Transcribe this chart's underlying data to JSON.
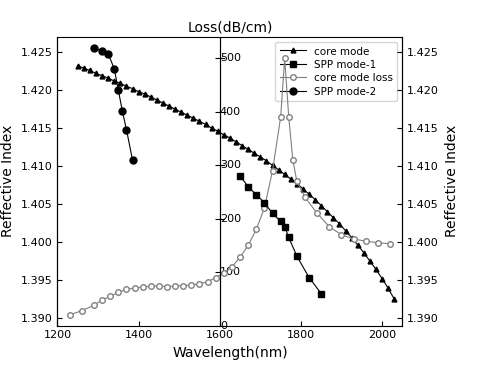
{
  "title_top": "Loss(dB/cm)",
  "xlabel": "Wavelength(nm)",
  "ylabel_left": "Reffective Index",
  "ylabel_right": "Reffective Index",
  "xlim": [
    1200,
    2050
  ],
  "ylim_left": [
    1.389,
    1.427
  ],
  "ylim_loss": [
    0,
    540
  ],
  "core_mode_x": [
    1250,
    1265,
    1280,
    1295,
    1310,
    1325,
    1340,
    1355,
    1370,
    1385,
    1400,
    1415,
    1430,
    1445,
    1460,
    1475,
    1490,
    1505,
    1520,
    1535,
    1550,
    1565,
    1580,
    1595,
    1610,
    1625,
    1640,
    1655,
    1670,
    1685,
    1700,
    1715,
    1730,
    1745,
    1760,
    1775,
    1790,
    1805,
    1820,
    1835,
    1850,
    1865,
    1880,
    1895,
    1910,
    1925,
    1940,
    1955,
    1970,
    1985,
    2000,
    2015,
    2030
  ],
  "core_mode_y": [
    1.4232,
    1.4229,
    1.4226,
    1.4222,
    1.4219,
    1.4216,
    1.4212,
    1.4209,
    1.4205,
    1.4202,
    1.4198,
    1.4195,
    1.4191,
    1.4187,
    1.4183,
    1.4179,
    1.4175,
    1.4171,
    1.4167,
    1.4163,
    1.4159,
    1.4155,
    1.415,
    1.4146,
    1.4141,
    1.4137,
    1.4132,
    1.4127,
    1.4122,
    1.4117,
    1.4112,
    1.4107,
    1.4101,
    1.4095,
    1.4089,
    1.4083,
    1.4077,
    1.407,
    1.4063,
    1.4056,
    1.4048,
    1.404,
    1.4032,
    1.4024,
    1.4015,
    1.4006,
    1.3996,
    1.3986,
    1.3975,
    1.3964,
    1.3952,
    1.3939,
    1.3925
  ],
  "spp_mode1_loss_x": [
    1650,
    1670,
    1690,
    1710,
    1730,
    1750,
    1760,
    1770,
    1790,
    1820,
    1850
  ],
  "spp_mode1_loss_y": [
    280,
    260,
    245,
    230,
    210,
    195,
    185,
    165,
    130,
    90,
    60
  ],
  "core_mode_loss_x": [
    1230,
    1260,
    1290,
    1310,
    1330,
    1350,
    1370,
    1390,
    1410,
    1430,
    1450,
    1470,
    1490,
    1510,
    1530,
    1550,
    1570,
    1590,
    1610,
    1630,
    1650,
    1670,
    1690,
    1710,
    1730,
    1750,
    1760,
    1770,
    1780,
    1790,
    1810,
    1840,
    1870,
    1900,
    1930,
    1960,
    1990,
    2020
  ],
  "core_mode_loss_y": [
    20,
    28,
    38,
    48,
    55,
    62,
    68,
    70,
    72,
    74,
    74,
    73,
    74,
    75,
    76,
    78,
    82,
    90,
    98,
    110,
    128,
    150,
    180,
    220,
    290,
    390,
    500,
    390,
    310,
    270,
    240,
    210,
    185,
    170,
    162,
    158,
    155,
    153
  ],
  "spp_mode2_x": [
    1290,
    1310,
    1325,
    1340,
    1350,
    1360,
    1370,
    1385
  ],
  "spp_mode2_y": [
    1.4255,
    1.4252,
    1.4248,
    1.4228,
    1.42,
    1.4172,
    1.4148,
    1.4108
  ],
  "yticks_left": [
    1.39,
    1.395,
    1.4,
    1.405,
    1.41,
    1.415,
    1.42,
    1.425
  ],
  "yticks_loss": [
    0,
    100,
    200,
    300,
    400,
    500
  ],
  "xticks": [
    1200,
    1400,
    1600,
    1800,
    2000
  ],
  "background_color": "#ffffff"
}
